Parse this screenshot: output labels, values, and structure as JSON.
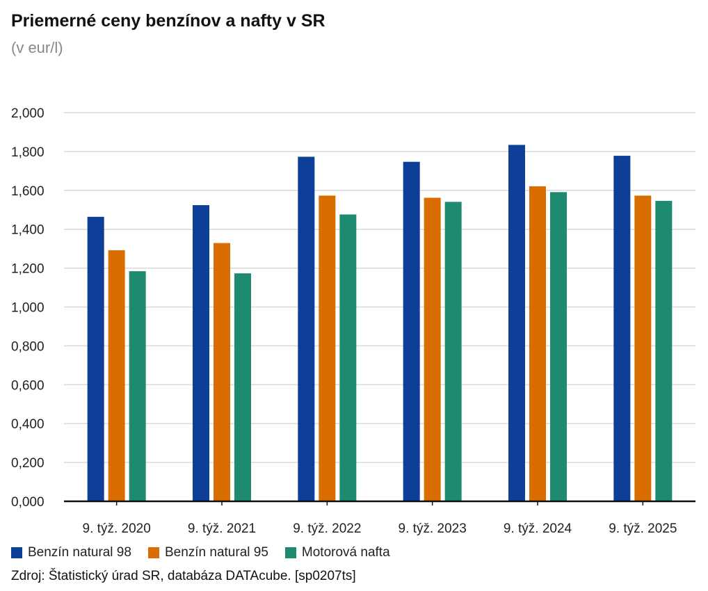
{
  "chart_data": {
    "type": "bar",
    "title": "Priemerné ceny benzínov a nafty v SR",
    "subtitle": "(v eur/l)",
    "categories": [
      "9. týž. 2020",
      "9. týž. 2021",
      "9. týž. 2022",
      "9. týž. 2023",
      "9. týž. 2024",
      "9. týž. 2025"
    ],
    "series": [
      {
        "name": "Benzín natural 98",
        "color": "#0d3f99",
        "values": [
          1.464,
          1.524,
          1.773,
          1.747,
          1.834,
          1.778
        ]
      },
      {
        "name": "Benzín natural 95",
        "color": "#d96d00",
        "values": [
          1.292,
          1.329,
          1.573,
          1.562,
          1.621,
          1.573
        ]
      },
      {
        "name": "Motorová nafta",
        "color": "#1e8a70",
        "values": [
          1.184,
          1.173,
          1.476,
          1.541,
          1.591,
          1.546
        ]
      }
    ],
    "yticks": [
      "0,000",
      "0,200",
      "0,400",
      "0,600",
      "0,800",
      "1,000",
      "1,200",
      "1,400",
      "1,600",
      "1,800",
      "2,000"
    ],
    "ylim": [
      0,
      2
    ],
    "grid": true,
    "legend_position": "bottom-left"
  },
  "source": "Zdroj: Štatistický úrad SR, databáza DATAcube. [sp0207ts]"
}
